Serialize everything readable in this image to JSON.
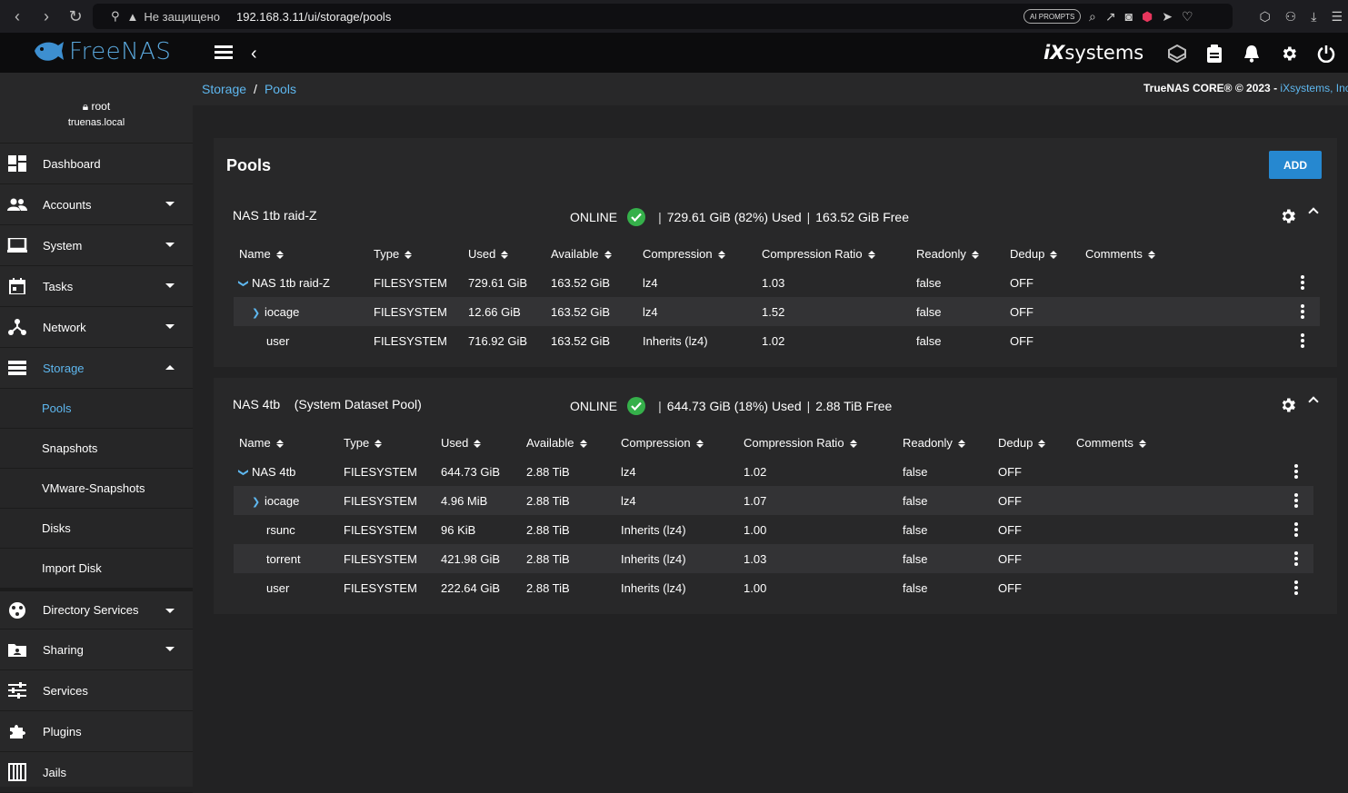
{
  "browser": {
    "insecure_label": "Не защищено",
    "url": "192.168.3.11/ui/storage/pools",
    "ai_badge": "AI PROMPTS"
  },
  "brand": {
    "logo_text": "FreeNAS",
    "vendor_prefix": "iX",
    "vendor_suffix": "systems",
    "accent": "#5eb7ef"
  },
  "user": {
    "name": "root",
    "host": "truenas.local"
  },
  "sidebar": {
    "items": [
      {
        "label": "Dashboard",
        "icon": "dashboard-icon"
      },
      {
        "label": "Accounts",
        "icon": "accounts-icon"
      },
      {
        "label": "System",
        "icon": "system-icon"
      },
      {
        "label": "Tasks",
        "icon": "tasks-icon"
      },
      {
        "label": "Network",
        "icon": "network-icon"
      },
      {
        "label": "Storage",
        "icon": "storage-icon"
      }
    ],
    "storage_sub": [
      "Pools",
      "Snapshots",
      "VMware-Snapshots",
      "Disks",
      "Import Disk"
    ],
    "items_after": [
      {
        "label": "Directory Services",
        "icon": "directory-services-icon"
      },
      {
        "label": "Sharing",
        "icon": "sharing-icon"
      },
      {
        "label": "Services",
        "icon": "services-icon"
      },
      {
        "label": "Plugins",
        "icon": "plugins-icon"
      },
      {
        "label": "Jails",
        "icon": "jails-icon"
      }
    ]
  },
  "breadcrumb": {
    "root": "Storage",
    "sep": "/",
    "current": "Pools"
  },
  "copyright": {
    "text": "TrueNAS CORE® © 2023 - ",
    "link": "iXsystems, Inc"
  },
  "page": {
    "title": "Pools",
    "add_label": "ADD"
  },
  "columns": [
    "Name",
    "Type",
    "Used",
    "Available",
    "Compression",
    "Compression Ratio",
    "Readonly",
    "Dedup",
    "Comments"
  ],
  "pools": [
    {
      "name": "NAS 1tb raid-Z",
      "status": "ONLINE",
      "used": "729.61 GiB (82%) Used",
      "free": "163.52 GiB Free",
      "rows": [
        {
          "name": "NAS 1tb raid-Z",
          "type": "FILESYSTEM",
          "used": "729.61 GiB",
          "available": "163.52 GiB",
          "compression": "lz4",
          "ratio": "1.03",
          "readonly": "false",
          "dedup": "OFF",
          "comments": ""
        },
        {
          "name": "iocage",
          "type": "FILESYSTEM",
          "used": "12.66 GiB",
          "available": "163.52 GiB",
          "compression": "lz4",
          "ratio": "1.52",
          "readonly": "false",
          "dedup": "OFF",
          "comments": ""
        },
        {
          "name": "user",
          "type": "FILESYSTEM",
          "used": "716.92 GiB",
          "available": "163.52 GiB",
          "compression": "Inherits (lz4)",
          "ratio": "1.02",
          "readonly": "false",
          "dedup": "OFF",
          "comments": ""
        }
      ]
    },
    {
      "name": "NAS 4tb",
      "subtitle": "(System Dataset Pool)",
      "status": "ONLINE",
      "used": "644.73 GiB (18%) Used",
      "free": "2.88 TiB Free",
      "rows": [
        {
          "name": "NAS 4tb",
          "type": "FILESYSTEM",
          "used": "644.73 GiB",
          "available": "2.88 TiB",
          "compression": "lz4",
          "ratio": "1.02",
          "readonly": "false",
          "dedup": "OFF",
          "comments": ""
        },
        {
          "name": "iocage",
          "type": "FILESYSTEM",
          "used": "4.96 MiB",
          "available": "2.88 TiB",
          "compression": "lz4",
          "ratio": "1.07",
          "readonly": "false",
          "dedup": "OFF",
          "comments": ""
        },
        {
          "name": "rsunc",
          "type": "FILESYSTEM",
          "used": "96 KiB",
          "available": "2.88 TiB",
          "compression": "Inherits (lz4)",
          "ratio": "1.00",
          "readonly": "false",
          "dedup": "OFF",
          "comments": ""
        },
        {
          "name": "torrent",
          "type": "FILESYSTEM",
          "used": "421.98 GiB",
          "available": "2.88 TiB",
          "compression": "Inherits (lz4)",
          "ratio": "1.03",
          "readonly": "false",
          "dedup": "OFF",
          "comments": ""
        },
        {
          "name": "user",
          "type": "FILESYSTEM",
          "used": "222.64 GiB",
          "available": "2.88 TiB",
          "compression": "Inherits (lz4)",
          "ratio": "1.00",
          "readonly": "false",
          "dedup": "OFF",
          "comments": ""
        }
      ]
    }
  ]
}
